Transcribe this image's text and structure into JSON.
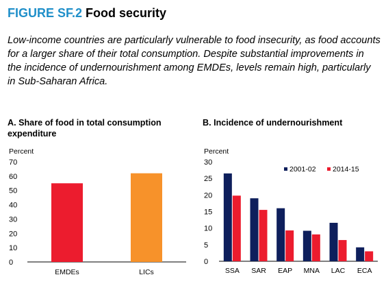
{
  "figure": {
    "label": "FIGURE SF.2",
    "name": "Food security",
    "subtitle": "Low-income countries are particularly vulnerable to food insecurity, as food accounts for a larger share of their total consumption. Despite substantial improvements in the incidence of undernourishment among EMDEs, levels remain high, particularly in Sub-Saharan Africa."
  },
  "colors": {
    "title_accent": "#1f8fc9",
    "red": "#ec1c2e",
    "orange": "#f7922a",
    "navy": "#0e1f5c"
  },
  "chart_data": [
    {
      "type": "bar",
      "title": "A. Share of food in total consumption expenditure",
      "ylabel": "Percent",
      "ylim": [
        0,
        70
      ],
      "yticks": [
        0,
        10,
        20,
        30,
        40,
        50,
        60,
        70
      ],
      "categories": [
        "EMDEs",
        "LICs"
      ],
      "values": [
        55,
        62
      ],
      "bar_colors": [
        "#ec1c2e",
        "#f7922a"
      ],
      "grid": false,
      "legend": null
    },
    {
      "type": "bar",
      "title": "B. Incidence of undernourishment",
      "ylabel": "Percent",
      "ylim": [
        0,
        30
      ],
      "yticks": [
        0,
        5,
        10,
        15,
        20,
        25,
        30
      ],
      "categories": [
        "SSA",
        "SAR",
        "EAP",
        "MNA",
        "LAC",
        "ECA"
      ],
      "series": [
        {
          "name": "2001-02",
          "color": "#0e1f5c",
          "values": [
            26.5,
            19,
            16,
            9.2,
            11.6,
            4.2
          ]
        },
        {
          "name": "2014-15",
          "color": "#ec1c2e",
          "values": [
            19.8,
            15.5,
            9.3,
            8.1,
            6.4,
            3.0
          ]
        }
      ],
      "grid": false,
      "legend": "top-right"
    }
  ]
}
